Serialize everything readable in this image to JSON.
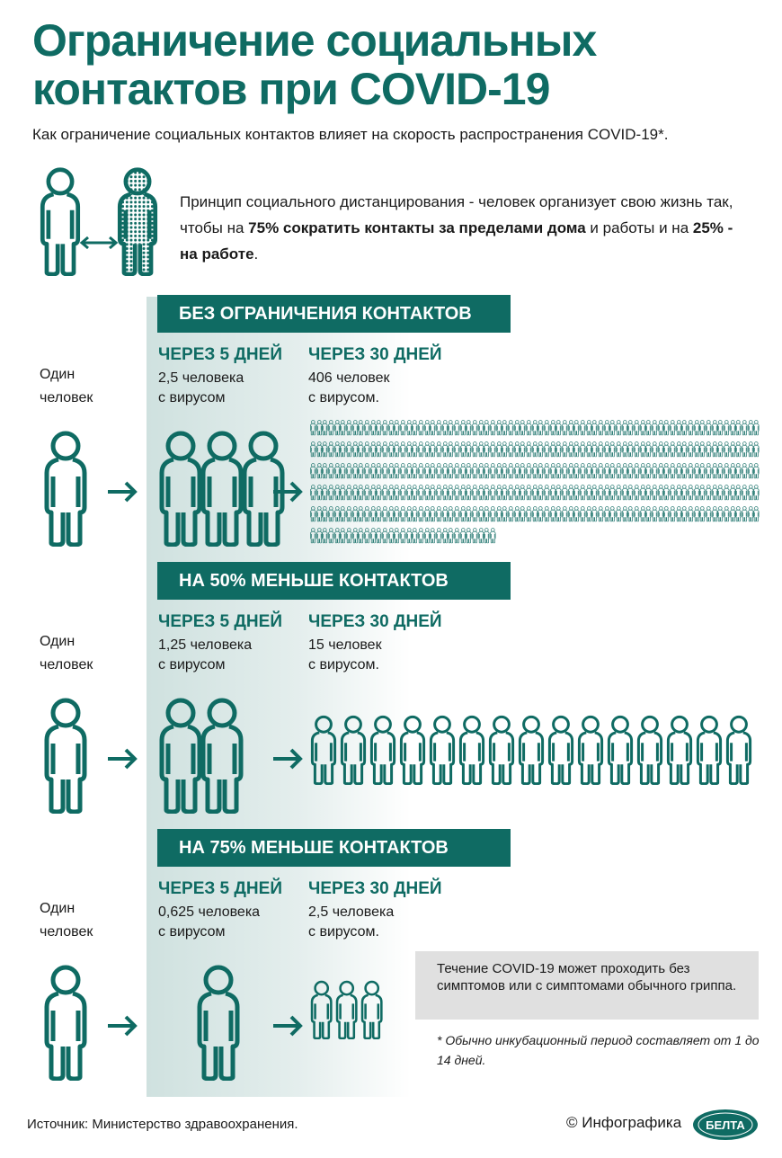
{
  "title": [
    "Ограничение социальных",
    "контактов при COVID-19"
  ],
  "subtitle": "Как ограничение социальных контактов влияет на скорость распространения COVID-19*.",
  "principle": {
    "t1": "Принцип социального дистанцирования - человек организует свою жизнь так, чтобы на ",
    "b1": "75% сократить контакты за пределами дома",
    "t2": " и работы и на ",
    "b2": "25% - на работе",
    "t3": "."
  },
  "one_person": [
    "Один",
    "человек"
  ],
  "colors": {
    "accent": "#0f6b63",
    "panel": "#cfe1df",
    "note": "#e0e0e0"
  },
  "sections": [
    {
      "label": "БЕЗ ОГРАНИЧЕНИЯ КОНТАКТОВ",
      "d5": "ЧЕРЕЗ 5 ДНЕЙ",
      "d5_val": [
        "2,5 человека",
        "с вирусом"
      ],
      "d30": "ЧЕРЕЗ 30 ДНЕЙ",
      "d30_val": [
        "406 человек",
        "с вирусом."
      ],
      "d5_people": 2.5,
      "d30_people": 406
    },
    {
      "label": "НА 50% МЕНЬШЕ КОНТАКТОВ",
      "d5": "ЧЕРЕЗ 5 ДНЕЙ",
      "d5_val": [
        "1,25 человека",
        "с вирусом"
      ],
      "d30": "ЧЕРЕЗ 30 ДНЕЙ",
      "d30_val": [
        "15 человек",
        "с вирусом."
      ],
      "d5_people": 1.25,
      "d30_people": 15
    },
    {
      "label": "НА 75% МЕНЬШЕ КОНТАКТОВ",
      "d5": "ЧЕРЕЗ 5 ДНЕЙ",
      "d5_val": [
        "0,625 человека",
        "с вирусом"
      ],
      "d30": "ЧЕРЕЗ 30 ДНЕЙ",
      "d30_val": [
        "2,5 человека",
        "с вирусом."
      ],
      "d5_people": 0.625,
      "d30_people": 2.5
    }
  ],
  "note": "Течение COVID-19 может проходить без симптомов или с симптомами обычного гриппа.",
  "footnote": "* Обычно инкубационный период составляет от 1 до 14 дней.",
  "source": "Источник: Министерство здравоохранения.",
  "copyright": "© Инфографика",
  "logo": "БЕЛТА"
}
